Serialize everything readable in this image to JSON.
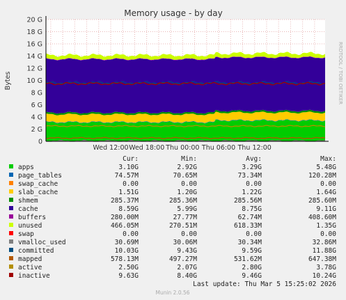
{
  "chart_data": {
    "type": "area",
    "title": "Memory usage - by day",
    "ylabel": "Bytes",
    "side_text": "RRDTOOL / TOBI OETIKER",
    "footer": "Munin 2.0.56",
    "last_update": "Last update: Thu Mar  5 15:25:02 2026",
    "ylim": [
      0,
      20
    ],
    "y_ticks": [
      "0",
      "2 G",
      "4 G",
      "6 G",
      "8 G",
      "10 G",
      "12 G",
      "14 G",
      "16 G",
      "18 G",
      "20 G"
    ],
    "x_ticks": [
      "Wed 12:00",
      "Wed 18:00",
      "Thu 00:00",
      "Thu 06:00",
      "Thu 12:00"
    ],
    "grid": true,
    "legend_headers": [
      "Cur:",
      "Min:",
      "Avg:",
      "Max:"
    ],
    "series": [
      {
        "name": "apps",
        "color": "#00cc00",
        "cur": "3.10G",
        "min": "2.92G",
        "avg": "3.29G",
        "max": "5.48G",
        "approx": 3.1
      },
      {
        "name": "page_tables",
        "color": "#0066b3",
        "cur": "74.57M",
        "min": "70.65M",
        "avg": "73.34M",
        "max": "120.28M",
        "approx": 0.07
      },
      {
        "name": "swap_cache",
        "color": "#ff8000",
        "cur": "0.00",
        "min": "0.00",
        "avg": "0.00",
        "max": "0.00",
        "approx": 0
      },
      {
        "name": "slab_cache",
        "color": "#ffcc00",
        "cur": "1.51G",
        "min": "1.20G",
        "avg": "1.22G",
        "max": "1.64G",
        "approx": 1.25
      },
      {
        "name": "shmem",
        "color": "#008f00",
        "cur": "285.37M",
        "min": "285.36M",
        "avg": "285.56M",
        "max": "285.60M",
        "approx": 0.28
      },
      {
        "name": "cache",
        "color": "#330099",
        "cur": "8.59G",
        "min": "5.99G",
        "avg": "8.75G",
        "max": "9.11G",
        "approx": 8.75
      },
      {
        "name": "buffers",
        "color": "#990099",
        "cur": "280.00M",
        "min": "27.77M",
        "avg": "62.74M",
        "max": "408.60M",
        "approx": 0.06
      },
      {
        "name": "unused",
        "color": "#ccff00",
        "cur": "466.05M",
        "min": "270.51M",
        "avg": "618.33M",
        "max": "1.35G",
        "approx": 0.62
      },
      {
        "name": "swap",
        "color": "#ff0000",
        "cur": "0.00",
        "min": "0.00",
        "avg": "0.00",
        "max": "0.00",
        "approx": 0
      },
      {
        "name": "vmalloc_used",
        "color": "#808080",
        "cur": "30.69M",
        "min": "30.06M",
        "avg": "30.34M",
        "max": "32.86M",
        "approx": 0.03
      },
      {
        "name": "committed",
        "color": "#004e80",
        "cur": "10.03G",
        "min": "9.43G",
        "avg": "9.59G",
        "max": "11.88G",
        "approx": 9.59
      },
      {
        "name": "mapped",
        "color": "#b35a00",
        "cur": "578.13M",
        "min": "497.27M",
        "avg": "531.62M",
        "max": "647.38M",
        "approx": 0.53
      },
      {
        "name": "active",
        "color": "#b38f00",
        "cur": "2.50G",
        "min": "2.07G",
        "avg": "2.80G",
        "max": "3.78G",
        "approx": 2.5
      },
      {
        "name": "inactive",
        "color": "#a00000",
        "cur": "9.63G",
        "min": "8.40G",
        "avg": "9.46G",
        "max": "10.24G",
        "approx": 9.46
      }
    ]
  }
}
